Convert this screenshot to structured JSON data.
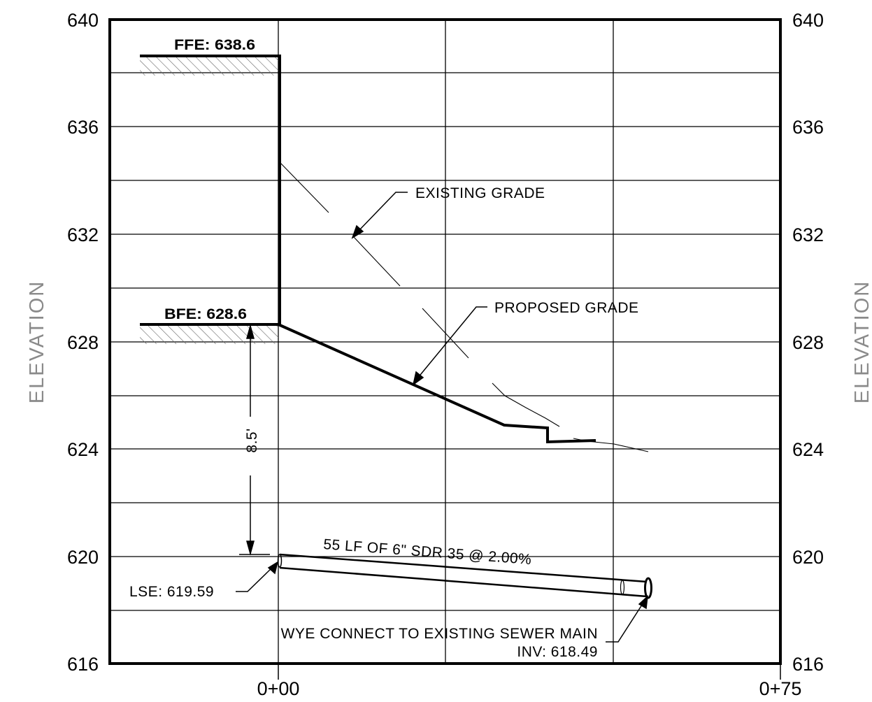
{
  "axes": {
    "left_ticks": [
      "640",
      "636",
      "632",
      "628",
      "624",
      "620",
      "616"
    ],
    "right_ticks": [
      "640",
      "636",
      "632",
      "628",
      "624",
      "620",
      "616"
    ],
    "bottom_ticks": [
      "0+00",
      "0+75"
    ],
    "left_title": "ELEVATION",
    "right_title": "ELEVATION"
  },
  "labels": {
    "ffe": "FFE: 638.6",
    "bfe": "BFE: 628.6",
    "existing_grade": "EXISTING GRADE",
    "proposed_grade": "PROPOSED GRADE",
    "depth": "8.5'",
    "pipe": "55 LF OF 6\" SDR 35 @ 2.00%",
    "lse": "LSE: 619.59",
    "wye_line1": "WYE CONNECT TO EXISTING SEWER MAIN",
    "wye_line2": "INV: 618.49"
  },
  "colors": {
    "linework": "#000000",
    "title_gray": "#8a8a8a",
    "hatch": "#666666"
  }
}
